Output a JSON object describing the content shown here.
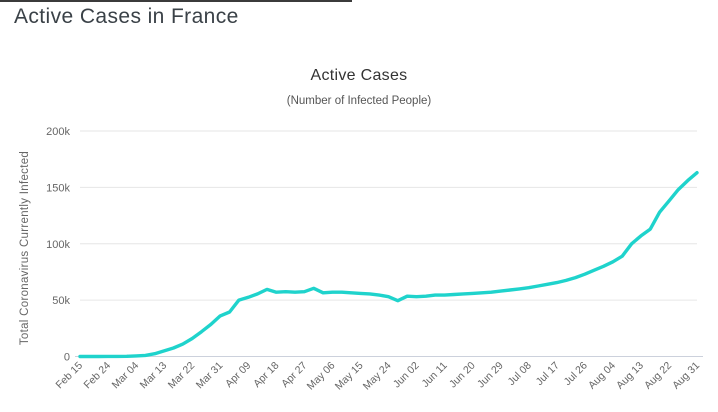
{
  "page": {
    "title": "Active Cases in France"
  },
  "chart_data": {
    "type": "line",
    "title": "Active Cases",
    "subtitle": "(Number of Infected People)",
    "xlabel": "",
    "ylabel": "Total Coronavirus Currently Infected",
    "x_tick_labels": [
      "Feb 15",
      "Feb 24",
      "Mar 04",
      "Mar 13",
      "Mar 22",
      "Mar 31",
      "Apr 09",
      "Apr 18",
      "Apr 27",
      "May 06",
      "May 15",
      "May 24",
      "Jun 02",
      "Jun 11",
      "Jun 20",
      "Jun 29",
      "Jul 08",
      "Jul 17",
      "Jul 26",
      "Aug 04",
      "Aug 13",
      "Aug 22",
      "Aug 31"
    ],
    "y_ticks": [
      {
        "value": 0,
        "label": "0"
      },
      {
        "value": 50000,
        "label": "50k"
      },
      {
        "value": 100000,
        "label": "100k"
      },
      {
        "value": 150000,
        "label": "150k"
      },
      {
        "value": 200000,
        "label": "200k"
      }
    ],
    "ylim": [
      0,
      200000
    ],
    "x_range_days": [
      0,
      198
    ],
    "grid": "horizontal-only",
    "legend": "none",
    "colors": {
      "line": "#1fd3cc",
      "grid": "#e6e6e6",
      "axis": "#ccd1dc",
      "tick_text": "#666666",
      "title_text": "#333333"
    },
    "series": [
      {
        "name": "Currently Infected",
        "color": "#1fd3cc",
        "x_days": [
          0,
          3,
          6,
          9,
          12,
          15,
          18,
          21,
          24,
          27,
          30,
          33,
          36,
          39,
          42,
          45,
          48,
          51,
          54,
          57,
          60,
          63,
          66,
          69,
          72,
          75,
          78,
          81,
          84,
          87,
          90,
          93,
          96,
          99,
          102,
          105,
          108,
          111,
          114,
          117,
          120,
          123,
          126,
          129,
          132,
          135,
          138,
          141,
          144,
          147,
          150,
          153,
          156,
          159,
          162,
          165,
          168,
          171,
          174,
          177,
          180,
          183,
          186,
          189,
          192,
          195,
          198
        ],
        "values": [
          10,
          10,
          20,
          50,
          100,
          150,
          500,
          1000,
          2500,
          5000,
          7500,
          11000,
          16000,
          22000,
          28500,
          36000,
          39500,
          50000,
          52500,
          55500,
          59500,
          57000,
          57500,
          57000,
          57500,
          60500,
          56500,
          57000,
          57000,
          56500,
          56000,
          55500,
          54500,
          53000,
          49500,
          53500,
          53000,
          53500,
          54500,
          54500,
          55000,
          55500,
          56000,
          56500,
          57000,
          58000,
          59000,
          60000,
          61000,
          62500,
          64000,
          65500,
          67500,
          70000,
          73000,
          76500,
          80000,
          84000,
          89000,
          100000,
          107000,
          113000,
          128000,
          138000,
          148000,
          156000,
          163000
        ]
      }
    ]
  }
}
